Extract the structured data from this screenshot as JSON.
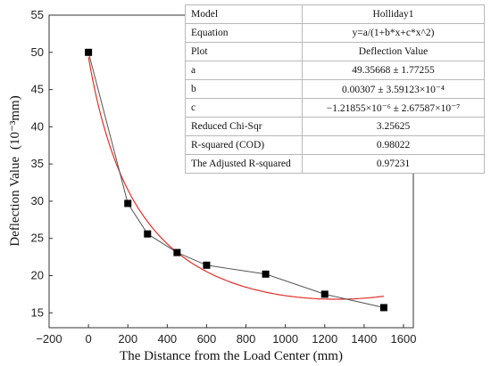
{
  "chart_data": {
    "type": "line",
    "xlabel": "The Distance from the Load Center (mm)",
    "ylabel": "Deflection Value",
    "ylabel_unit": "(10⁻³mm)",
    "xlim": [
      -200,
      1650
    ],
    "ylim": [
      13,
      55
    ],
    "xticks": [
      -200,
      0,
      200,
      400,
      600,
      800,
      1000,
      1200,
      1400,
      1600
    ],
    "yticks": [
      15,
      20,
      25,
      30,
      35,
      40,
      45,
      50,
      55
    ],
    "grid": false,
    "series": [
      {
        "marker": "square",
        "x": [
          0,
          200,
          300,
          450,
          600,
          900,
          1200,
          1500
        ],
        "y": [
          50.0,
          29.7,
          25.6,
          23.1,
          21.4,
          20.2,
          17.5,
          15.7
        ],
        "color": "#555555",
        "marker_color": "#000000"
      },
      {
        "fit": "Holliday1",
        "color": "#e0302a",
        "a": 49.35668,
        "b": 0.00307,
        "c": -1.21855e-06,
        "x_range": [
          0,
          1500
        ]
      }
    ]
  },
  "fit_table": {
    "rows": [
      {
        "key": "Model",
        "value": "Holliday1"
      },
      {
        "key": "Equation",
        "value": "y=a/(1+b*x+c*x^2)"
      },
      {
        "key": "Plot",
        "value": "Deflection Value"
      },
      {
        "key": "a",
        "value": "49.35668 ± 1.77255"
      },
      {
        "key": "b",
        "value": "0.00307 ± 3.59123×10⁻⁴"
      },
      {
        "key": "c",
        "value": "−1.21855×10⁻⁶ ± 2.67587×10⁻⁷"
      },
      {
        "key": "Reduced Chi-Sqr",
        "value": "3.25625"
      },
      {
        "key": "R-squared (COD)",
        "value": "0.98022"
      },
      {
        "key": "The Adjusted R-squared",
        "value": "0.97231"
      }
    ]
  }
}
